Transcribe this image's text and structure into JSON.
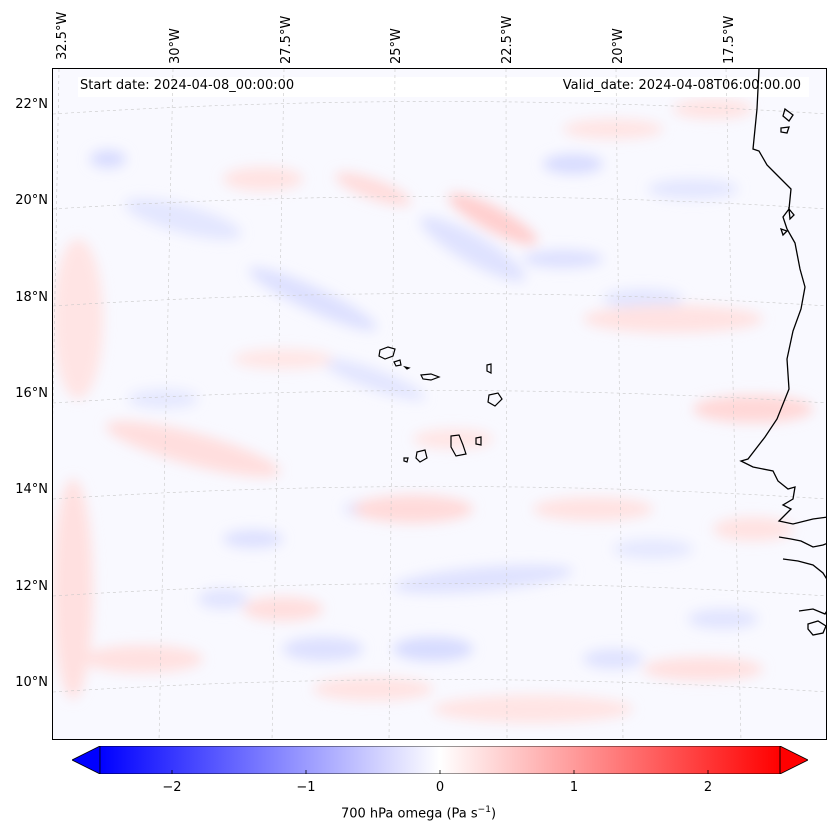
{
  "map": {
    "header": {
      "start_date": "Start date: 2024-04-08_00:00:00",
      "valid_date": "Valid_date: 2024-04-08T06:00:00.00"
    },
    "longitude_labels": [
      "32.5°W",
      "30°W",
      "27.5°W",
      "25°W",
      "22.5°W",
      "20°W",
      "17.5°W"
    ],
    "latitude_labels": [
      "22°N",
      "20°N",
      "18°N",
      "16°N",
      "14°N",
      "12°N",
      "10°N"
    ],
    "gridlines": true,
    "projection": "conic"
  },
  "colorbar": {
    "label": "700 hPa omega (Pa s",
    "label_superscript": "−1",
    "label_close": ")",
    "ticks": [
      "−2",
      "−1",
      "0",
      "1",
      "2"
    ],
    "range": [
      -2.7,
      2.7
    ],
    "colormap": "bwr",
    "colors": {
      "min": "#0000ff",
      "mid": "#ffffff",
      "max": "#ff0000"
    },
    "extend": "both"
  }
}
